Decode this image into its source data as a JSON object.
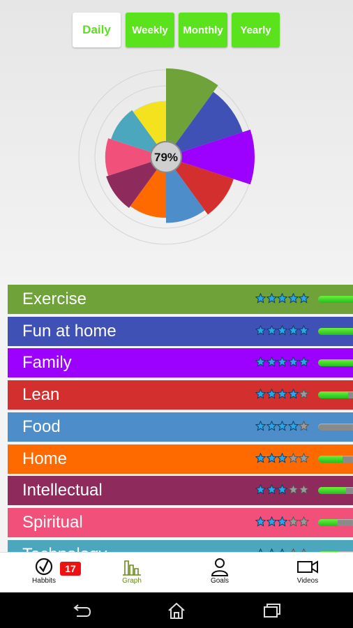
{
  "period_tabs": [
    {
      "label": "Daily",
      "active": true
    },
    {
      "label": "Weekly",
      "active": false
    },
    {
      "label": "Monthly",
      "active": false
    },
    {
      "label": "Yearly",
      "active": false
    }
  ],
  "chart_data": {
    "type": "polar_area",
    "center_label": "79%",
    "segments": [
      {
        "category": "Exercise",
        "value": 1.0,
        "color": "#6fa33a"
      },
      {
        "category": "Fun at home",
        "value": 0.89,
        "color": "#3f51b5"
      },
      {
        "category": "Family",
        "value": 1.0,
        "color": "#9c00ff"
      },
      {
        "category": "Lean",
        "value": 0.76,
        "color": "#d32f2f"
      },
      {
        "category": "Food",
        "value": 0.69,
        "color": "#4d8dc9"
      },
      {
        "category": "Home",
        "value": 0.62,
        "color": "#ff6a00"
      },
      {
        "category": "Intellectual",
        "value": 0.65,
        "color": "#8e2a5c"
      },
      {
        "category": "Spiritual",
        "value": 0.62,
        "color": "#f0507a"
      },
      {
        "category": "Technology",
        "value": 0.58,
        "color": "#4aa7be"
      },
      {
        "category": "",
        "value": 0.55,
        "color": "#f5e21e"
      }
    ]
  },
  "habits": [
    {
      "name": "Exercise",
      "rating": 5,
      "progress": 1.0,
      "color": "#6fa33a"
    },
    {
      "name": "Fun at home",
      "rating": 5,
      "progress": 1.0,
      "color": "#3f51b5"
    },
    {
      "name": "Family",
      "rating": 5,
      "progress": 1.0,
      "color": "#9c00ff"
    },
    {
      "name": "Lean",
      "rating": 4,
      "progress": 0.85,
      "color": "#d32f2f"
    },
    {
      "name": "Food",
      "rating": 4,
      "progress": 0.0,
      "color": "#4d8dc9"
    },
    {
      "name": "Home",
      "rating": 3,
      "progress": 0.7,
      "color": "#ff6a00"
    },
    {
      "name": "Intellectual",
      "rating": 3,
      "progress": 0.8,
      "color": "#8e2a5c"
    },
    {
      "name": "Spiritual",
      "rating": 3,
      "progress": 0.55,
      "color": "#f0507a"
    },
    {
      "name": "Technology",
      "rating": 3,
      "progress": 0.6,
      "color": "#4aa7be"
    }
  ],
  "bottom_nav": [
    {
      "label": "Habbits",
      "icon": "check-circle-icon",
      "badge": "17",
      "active": false
    },
    {
      "label": "Graph",
      "icon": "bar-chart-icon",
      "active": true
    },
    {
      "label": "Goals",
      "icon": "person-icon",
      "active": false
    },
    {
      "label": "Videos",
      "icon": "video-camera-icon",
      "active": false
    }
  ],
  "system_nav": [
    {
      "icon": "back-icon"
    },
    {
      "icon": "home-icon"
    },
    {
      "icon": "recent-apps-icon"
    }
  ],
  "colors": {
    "accent": "#5ae31c",
    "badge": "#ee1111"
  }
}
